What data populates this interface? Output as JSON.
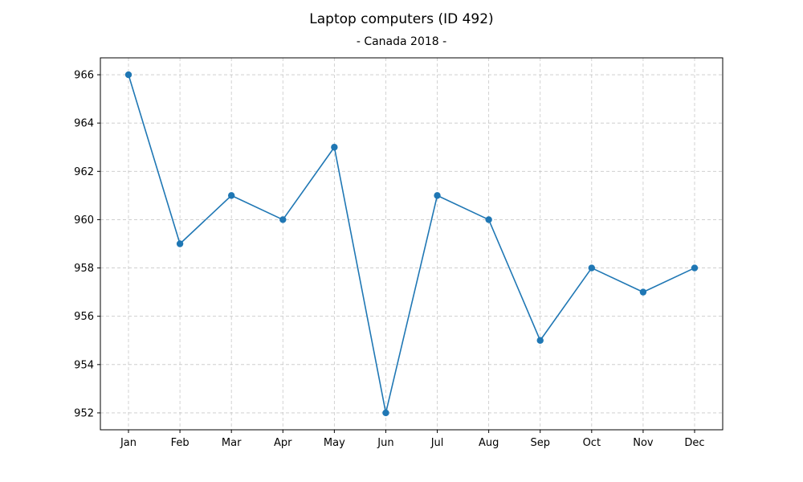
{
  "chart_data": {
    "type": "line",
    "title": "Laptop computers (ID 492)",
    "subtitle": "- Canada 2018 -",
    "xlabel": "",
    "ylabel": "",
    "categories": [
      "Jan",
      "Feb",
      "Mar",
      "Apr",
      "May",
      "Jun",
      "Jul",
      "Aug",
      "Sep",
      "Oct",
      "Nov",
      "Dec"
    ],
    "series": [
      {
        "values": [
          966,
          959,
          961,
          960,
          963,
          952,
          961,
          960,
          955,
          958,
          957,
          958
        ]
      }
    ],
    "yticks": [
      952,
      954,
      956,
      958,
      960,
      962,
      964,
      966
    ],
    "ylim": [
      951.3,
      966.7
    ],
    "grid": true,
    "grid_style": "dashed",
    "color": "#1f77b4",
    "marker": "circle"
  }
}
